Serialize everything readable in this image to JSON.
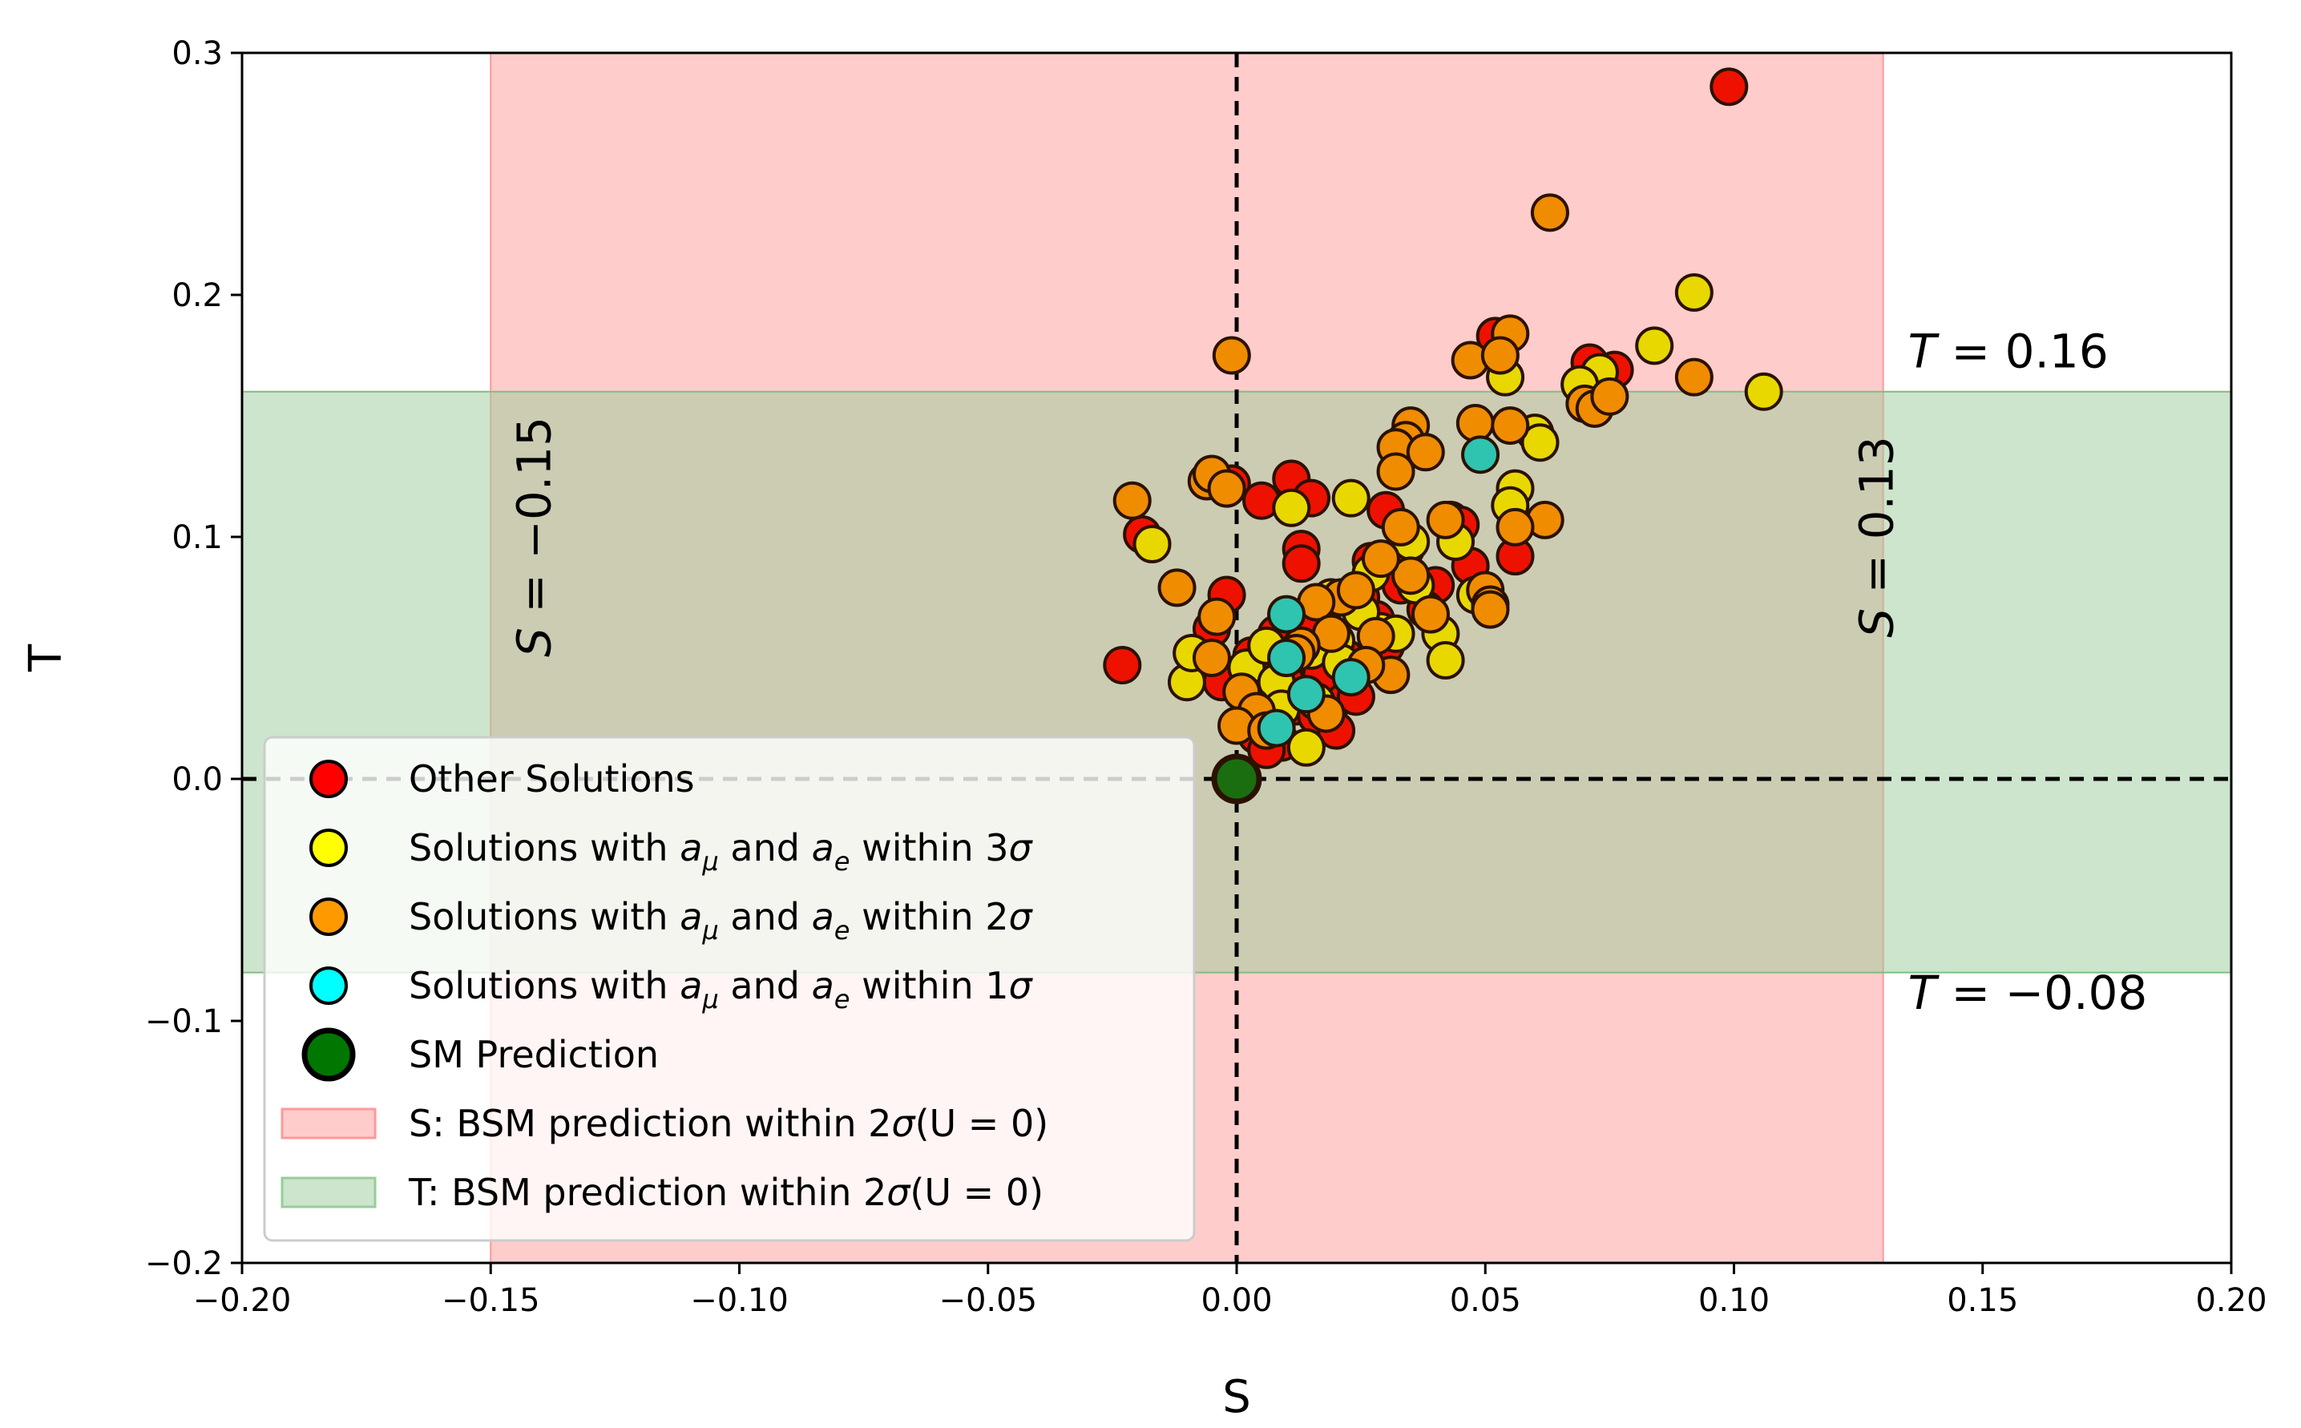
{
  "chart_data": {
    "type": "scatter",
    "title": "",
    "xlabel": "S",
    "ylabel": "T",
    "xlim": [
      -0.2,
      0.2
    ],
    "ylim": [
      -0.2,
      0.3
    ],
    "xticks": [
      -0.2,
      -0.15,
      -0.1,
      -0.05,
      0.0,
      0.05,
      0.1,
      0.15,
      0.2
    ],
    "yticks": [
      -0.2,
      -0.1,
      0.0,
      0.1,
      0.2,
      0.3
    ],
    "xtick_labels": [
      "−0.20",
      "−0.15",
      "−0.10",
      "−0.05",
      "0.00",
      "0.05",
      "0.10",
      "0.15",
      "0.20"
    ],
    "ytick_labels": [
      "−0.2",
      "−0.1",
      "0.0",
      "0.1",
      "0.2",
      "0.3"
    ],
    "bands": [
      {
        "name": "S: BSM prediction within 2σ(U=0)",
        "axis": "x",
        "range": [
          -0.15,
          0.13
        ],
        "color": "#ff9999",
        "alpha": 0.5
      },
      {
        "name": "T: BSM prediction within 2σ(U=0)",
        "axis": "y",
        "range": [
          -0.08,
          0.16
        ],
        "color": "#99cc99",
        "alpha": 0.5
      }
    ],
    "reference_lines": [
      {
        "axis": "x",
        "value": 0.0,
        "style": "dashed"
      },
      {
        "axis": "y",
        "value": 0.0,
        "style": "dashed"
      }
    ],
    "annotations": [
      {
        "text_var": "S",
        "text_val": " = −0.15",
        "x": -0.145,
        "y": 0.1,
        "rotation": -90
      },
      {
        "text_var": "S",
        "text_val": " = 0.13",
        "x": 0.125,
        "y": 0.1,
        "rotation": -90
      },
      {
        "text_var": "T",
        "text_val": " = 0.16",
        "x": 0.135,
        "y": 0.17,
        "rotation": 0
      },
      {
        "text_var": "T",
        "text_val": " = −0.08",
        "x": 0.135,
        "y": -0.095,
        "rotation": 0
      }
    ],
    "legend_position": "lower-left",
    "series": [
      {
        "name": "Other Solutions",
        "color": "#ee1100",
        "legend_color": "#ff0000",
        "points": [
          [
            0.099,
            0.286
          ],
          [
            0.052,
            0.183
          ],
          [
            0.071,
            0.172
          ],
          [
            0.076,
            0.169
          ],
          [
            0.011,
            0.124
          ],
          [
            -0.001,
            0.122
          ],
          [
            0.005,
            0.115
          ],
          [
            0.015,
            0.116
          ],
          [
            0.03,
            0.111
          ],
          [
            0.043,
            0.107
          ],
          [
            0.056,
            0.092
          ],
          [
            0.013,
            0.095
          ],
          [
            0.013,
            0.089
          ],
          [
            -0.019,
            0.101
          ],
          [
            0.027,
            0.09
          ],
          [
            0.04,
            0.08
          ],
          [
            0.038,
            0.07
          ],
          [
            0.028,
            0.066
          ],
          [
            0.018,
            0.072
          ],
          [
            -0.023,
            0.047
          ],
          [
            -0.002,
            0.076
          ],
          [
            0.003,
            0.051
          ],
          [
            0.007,
            0.045
          ],
          [
            0.01,
            0.04
          ],
          [
            0.012,
            0.03
          ],
          [
            0.016,
            0.026
          ],
          [
            0.02,
            0.033
          ],
          [
            0.024,
            0.034
          ],
          [
            0.022,
            0.05
          ],
          [
            0.009,
            0.015
          ],
          [
            0.004,
            0.018
          ],
          [
            0.006,
            0.012
          ],
          [
            -0.005,
            0.062
          ],
          [
            0.034,
            0.095
          ],
          [
            0.045,
            0.105
          ],
          [
            0.047,
            0.088
          ],
          [
            0.025,
            0.075
          ],
          [
            0.03,
            0.055
          ],
          [
            0.008,
            0.06
          ],
          [
            0.017,
            0.043
          ],
          [
            0.02,
            0.02
          ],
          [
            -0.003,
            0.04
          ],
          [
            0.033,
            0.08
          ],
          [
            0.014,
            0.062
          ]
        ]
      },
      {
        "name": "Solutions with a_μ and a_e within 3σ",
        "color": "#e8d800",
        "legend_color": "#ffff00",
        "points": [
          [
            0.092,
            0.201
          ],
          [
            0.084,
            0.179
          ],
          [
            0.073,
            0.168
          ],
          [
            0.069,
            0.163
          ],
          [
            0.106,
            0.16
          ],
          [
            0.054,
            0.166
          ],
          [
            0.06,
            0.143
          ],
          [
            0.061,
            0.139
          ],
          [
            0.056,
            0.12
          ],
          [
            0.055,
            0.113
          ],
          [
            0.023,
            0.116
          ],
          [
            0.011,
            0.112
          ],
          [
            0.035,
            0.098
          ],
          [
            0.044,
            0.098
          ],
          [
            0.027,
            0.085
          ],
          [
            0.036,
            0.08
          ],
          [
            -0.017,
            0.097
          ],
          [
            0.041,
            0.06
          ],
          [
            0.029,
            0.061
          ],
          [
            0.02,
            0.057
          ],
          [
            0.015,
            0.053
          ],
          [
            0.021,
            0.048
          ],
          [
            -0.01,
            0.04
          ],
          [
            -0.009,
            0.052
          ],
          [
            0.002,
            0.046
          ],
          [
            0.008,
            0.04
          ],
          [
            0.009,
            0.029
          ],
          [
            0.014,
            0.013
          ],
          [
            0.042,
            0.049
          ],
          [
            0.019,
            0.075
          ],
          [
            0.048,
            0.076
          ],
          [
            0.025,
            0.069
          ],
          [
            0.003,
            0.03
          ],
          [
            0.016,
            0.032
          ],
          [
            0.032,
            0.06
          ],
          [
            0.006,
            0.055
          ]
        ]
      },
      {
        "name": "Solutions with a_μ and a_e within 2σ",
        "color": "#f08c00",
        "legend_color": "#ff9900",
        "points": [
          [
            0.063,
            0.234
          ],
          [
            0.055,
            0.184
          ],
          [
            0.047,
            0.173
          ],
          [
            0.053,
            0.175
          ],
          [
            0.092,
            0.166
          ],
          [
            -0.001,
            0.175
          ],
          [
            0.07,
            0.155
          ],
          [
            0.072,
            0.153
          ],
          [
            0.075,
            0.158
          ],
          [
            0.048,
            0.147
          ],
          [
            0.055,
            0.146
          ],
          [
            0.035,
            0.146
          ],
          [
            0.034,
            0.14
          ],
          [
            0.032,
            0.137
          ],
          [
            0.032,
            0.127
          ],
          [
            0.038,
            0.135
          ],
          [
            -0.021,
            0.115
          ],
          [
            -0.006,
            0.123
          ],
          [
            -0.005,
            0.126
          ],
          [
            -0.002,
            0.12
          ],
          [
            0.062,
            0.107
          ],
          [
            0.056,
            0.104
          ],
          [
            0.033,
            0.104
          ],
          [
            0.042,
            0.107
          ],
          [
            0.035,
            0.084
          ],
          [
            0.029,
            0.091
          ],
          [
            0.021,
            0.075
          ],
          [
            0.016,
            0.073
          ],
          [
            -0.012,
            0.079
          ],
          [
            -0.004,
            0.067
          ],
          [
            0.031,
            0.043
          ],
          [
            0.028,
            0.059
          ],
          [
            0.019,
            0.06
          ],
          [
            0.039,
            0.068
          ],
          [
            0.05,
            0.078
          ],
          [
            0.051,
            0.072
          ],
          [
            0.051,
            0.07
          ],
          [
            0.013,
            0.055
          ],
          [
            0.001,
            0.036
          ],
          [
            0.004,
            0.028
          ],
          [
            0.018,
            0.027
          ],
          [
            -0.005,
            0.05
          ],
          [
            0.0,
            0.022
          ],
          [
            0.006,
            0.02
          ],
          [
            0.024,
            0.078
          ],
          [
            0.012,
            0.052
          ],
          [
            0.026,
            0.047
          ]
        ]
      },
      {
        "name": "Solutions with a_μ and a_e within 1σ",
        "color": "#2ec4b0",
        "legend_color": "#00ffff",
        "points": [
          [
            0.049,
            0.134
          ],
          [
            0.01,
            0.068
          ],
          [
            0.01,
            0.05
          ],
          [
            0.023,
            0.042
          ],
          [
            0.014,
            0.035
          ],
          [
            0.008,
            0.021
          ]
        ]
      },
      {
        "name": "SM Prediction",
        "color": "#1a6e10",
        "legend_color": "#007700",
        "points": [
          [
            0.0,
            0.0
          ]
        ]
      }
    ],
    "legend_entries": [
      {
        "kind": "marker",
        "color_ref": 0,
        "pre": "Other Solutions",
        "mu": "",
        "and": "",
        "e": "",
        "post": "",
        "sigma": ""
      },
      {
        "kind": "marker",
        "color_ref": 1,
        "pre": "Solutions with ",
        "mu": "μ",
        "and": " and ",
        "e": "e",
        "post": " within 3",
        "sigma": "σ"
      },
      {
        "kind": "marker",
        "color_ref": 2,
        "pre": "Solutions with ",
        "mu": "μ",
        "and": " and ",
        "e": "e",
        "post": " within 2",
        "sigma": "σ"
      },
      {
        "kind": "marker",
        "color_ref": 3,
        "pre": "Solutions with ",
        "mu": "μ",
        "and": " and ",
        "e": "e",
        "post": " within 1",
        "sigma": "σ"
      },
      {
        "kind": "big-marker",
        "color_ref": 4,
        "pre": "SM Prediction",
        "mu": "",
        "and": "",
        "e": "",
        "post": "",
        "sigma": ""
      },
      {
        "kind": "patch",
        "color_ref": "band0",
        "pre": "S: BSM prediction within 2",
        "sigma": "σ",
        "paren": "(U = 0)"
      },
      {
        "kind": "patch",
        "color_ref": "band1",
        "pre": "T: BSM prediction within 2",
        "sigma": "σ",
        "paren": "(U = 0)"
      }
    ]
  }
}
